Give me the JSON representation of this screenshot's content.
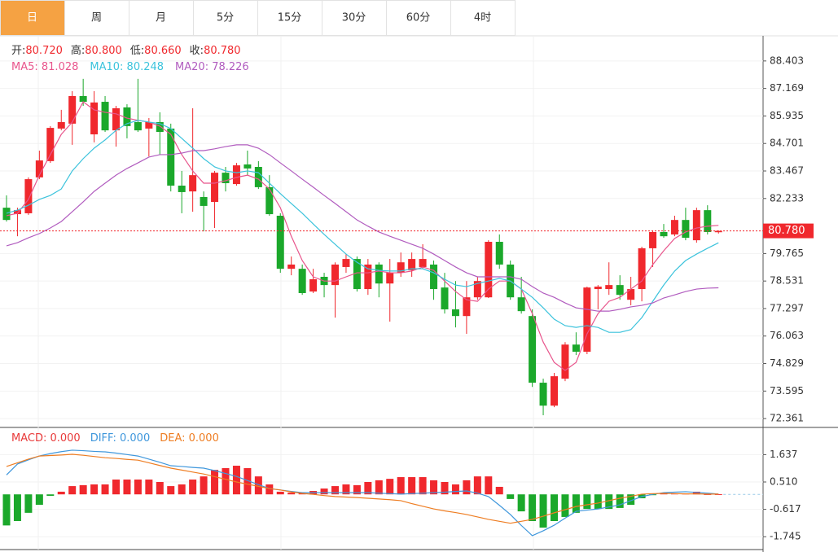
{
  "tabs": [
    "日",
    "周",
    "月",
    "5分",
    "15分",
    "30分",
    "60分",
    "4时"
  ],
  "active_tab": 0,
  "chart_data": [
    {
      "type": "candlestick",
      "info": [
        {
          "label": "开:",
          "value": "80.720"
        },
        {
          "label": "高:",
          "value": "80.800"
        },
        {
          "label": "低:",
          "value": "80.660"
        },
        {
          "label": "收:",
          "value": "80.780"
        }
      ],
      "up_color": "#f0282d",
      "down_color": "#1ba82b",
      "open": [
        81.82,
        81.53,
        81.57,
        83.18,
        83.91,
        85.37,
        85.59,
        86.83,
        85.11,
        86.57,
        85.29,
        86.32,
        85.66,
        85.37,
        85.66,
        85.37,
        82.81,
        82.55,
        82.3,
        82.08,
        83.39,
        82.88,
        83.76,
        83.65,
        82.74,
        81.46,
        79.08,
        79.08,
        78.06,
        78.72,
        78.35,
        79.16,
        79.52,
        78.17,
        79.27,
        78.42,
        78.9,
        79.01,
        79.16,
        79.27,
        78.24,
        77.26,
        76.96,
        77.8,
        77.8,
        80.29,
        79.27,
        77.8,
        76.96,
        73.97,
        72.94,
        74.15,
        75.68,
        75.36,
        78.17,
        78.17,
        78.35,
        77.69,
        78.17,
        80.0,
        80.73,
        80.62,
        81.27,
        80.36,
        81.71,
        80.72
      ],
      "high": [
        82.37,
        81.82,
        83.18,
        84.38,
        85.48,
        86.21,
        87.05,
        87.6,
        87.05,
        86.83,
        86.39,
        86.46,
        87.6,
        85.84,
        86.1,
        85.59,
        83.47,
        86.28,
        82.55,
        83.47,
        83.65,
        83.83,
        84.38,
        83.91,
        83.28,
        81.57,
        79.63,
        79.27,
        79.08,
        78.9,
        79.37,
        79.74,
        79.63,
        79.52,
        79.37,
        79.52,
        79.81,
        79.81,
        80.18,
        79.45,
        78.9,
        78.53,
        78.53,
        78.72,
        80.36,
        80.62,
        79.45,
        78.72,
        77.26,
        74.15,
        74.41,
        75.79,
        76.23,
        78.28,
        78.35,
        79.37,
        78.79,
        78.72,
        80.07,
        80.8,
        81.09,
        81.46,
        81.82,
        81.82,
        81.93,
        80.8
      ],
      "low": [
        81.2,
        80.54,
        81.5,
        83.1,
        83.83,
        85.29,
        84.64,
        86.39,
        84.75,
        85.22,
        84.56,
        84.93,
        85.22,
        84.12,
        84.2,
        82.55,
        81.57,
        81.64,
        80.76,
        80.91,
        82.55,
        82.81,
        83.28,
        82.66,
        81.46,
        78.9,
        78.79,
        77.91,
        77.99,
        77.8,
        76.89,
        78.9,
        78.06,
        77.91,
        77.8,
        76.71,
        78.72,
        78.72,
        79.08,
        77.69,
        77.07,
        76.45,
        76.16,
        77.69,
        77.77,
        79.08,
        77.69,
        77.07,
        73.78,
        72.51,
        72.87,
        74.04,
        75.21,
        75.25,
        77.26,
        77.91,
        77.69,
        77.44,
        77.62,
        79.16,
        80.47,
        80.54,
        80.36,
        80.25,
        80.62,
        80.66
      ],
      "close": [
        81.27,
        81.71,
        83.1,
        83.94,
        85.4,
        85.66,
        86.83,
        86.57,
        86.54,
        85.29,
        86.28,
        85.48,
        85.29,
        85.66,
        85.22,
        82.81,
        82.52,
        83.28,
        81.9,
        83.39,
        82.92,
        83.72,
        83.58,
        82.74,
        81.53,
        79.08,
        79.27,
        77.99,
        78.61,
        78.35,
        79.27,
        79.52,
        78.17,
        79.27,
        78.42,
        78.9,
        79.37,
        79.52,
        79.52,
        78.17,
        77.26,
        76.96,
        77.8,
        78.53,
        80.29,
        79.27,
        77.8,
        77.18,
        73.97,
        72.94,
        74.26,
        75.68,
        75.36,
        78.24,
        78.28,
        78.35,
        77.91,
        78.17,
        80.0,
        80.73,
        80.54,
        81.27,
        80.47,
        81.71,
        80.73,
        80.78
      ],
      "series": [
        {
          "legend": "MA5: 81.028",
          "color": "#e8558c",
          "values": [
            81.46,
            81.57,
            82.19,
            83.28,
            84.2,
            85.11,
            85.66,
            86.57,
            86.21,
            86.1,
            86.03,
            85.84,
            85.74,
            85.66,
            85.48,
            85.11,
            84.2,
            83.47,
            82.92,
            82.92,
            83.03,
            83.18,
            83.28,
            83.1,
            82.66,
            81.82,
            80.54,
            79.45,
            78.72,
            78.53,
            78.53,
            78.72,
            78.9,
            78.9,
            78.98,
            78.9,
            78.9,
            78.98,
            79.16,
            79.01,
            78.53,
            78.06,
            77.69,
            77.62,
            78.17,
            78.53,
            78.53,
            78.17,
            77.07,
            75.79,
            74.88,
            74.52,
            74.88,
            76.16,
            77.07,
            77.62,
            77.8,
            78.17,
            78.53,
            79.27,
            79.89,
            80.44,
            80.73,
            80.91,
            80.99,
            81.028
          ]
        },
        {
          "legend": "MA10: 80.248",
          "color": "#3cc3dc",
          "values": [
            81.57,
            81.71,
            81.93,
            82.19,
            82.37,
            82.66,
            83.47,
            84.02,
            84.49,
            84.86,
            85.29,
            85.59,
            85.74,
            85.66,
            85.59,
            85.37,
            84.93,
            84.49,
            84.02,
            83.65,
            83.47,
            83.39,
            83.47,
            83.39,
            82.92,
            82.45,
            82.01,
            81.57,
            81.09,
            80.62,
            80.18,
            79.74,
            79.37,
            79.08,
            79.01,
            78.98,
            78.98,
            79.08,
            79.08,
            78.9,
            78.61,
            78.35,
            78.28,
            78.42,
            78.53,
            78.65,
            78.53,
            78.17,
            77.8,
            77.33,
            76.82,
            76.53,
            76.45,
            76.53,
            76.45,
            76.23,
            76.23,
            76.35,
            76.89,
            77.62,
            78.35,
            78.98,
            79.45,
            79.74,
            80.0,
            80.248
          ]
        },
        {
          "legend": "MA20: 78.226",
          "color": "#b15cbf",
          "values": [
            80.11,
            80.25,
            80.47,
            80.66,
            80.91,
            81.2,
            81.64,
            82.08,
            82.55,
            82.92,
            83.28,
            83.58,
            83.83,
            84.09,
            84.2,
            84.2,
            84.27,
            84.38,
            84.38,
            84.46,
            84.56,
            84.64,
            84.64,
            84.49,
            84.2,
            83.83,
            83.47,
            83.1,
            82.74,
            82.37,
            82.01,
            81.64,
            81.27,
            80.99,
            80.73,
            80.54,
            80.36,
            80.18,
            80.0,
            79.74,
            79.45,
            79.16,
            78.9,
            78.72,
            78.72,
            78.72,
            78.72,
            78.61,
            78.28,
            77.99,
            77.8,
            77.55,
            77.33,
            77.26,
            77.18,
            77.18,
            77.26,
            77.37,
            77.44,
            77.55,
            77.77,
            77.91,
            78.06,
            78.17,
            78.21,
            78.226
          ]
        }
      ],
      "last_price": {
        "value": 80.78,
        "label": "80.780"
      },
      "ylim": [
        72.0,
        89.53
      ],
      "yticks": [
        88.403,
        87.169,
        85.935,
        84.701,
        83.467,
        82.233,
        79.765,
        78.531,
        77.297,
        76.063,
        74.829,
        73.595,
        72.361
      ],
      "grid": true
    },
    {
      "type": "macd",
      "legend": [
        {
          "text": "MACD: 0.000",
          "color": "#e83a3a"
        },
        {
          "text": "DIFF: 0.000",
          "color": "#3f97dc"
        },
        {
          "text": "DEA: 0.000",
          "color": "#ee7d22"
        }
      ],
      "up_color": "#f0282d",
      "down_color": "#1ba82b",
      "values": [
        -1.28,
        -1.1,
        -0.76,
        -0.43,
        -0.06,
        0.11,
        0.34,
        0.38,
        0.41,
        0.41,
        0.61,
        0.61,
        0.61,
        0.61,
        0.51,
        0.34,
        0.41,
        0.61,
        0.74,
        1.01,
        1.08,
        1.18,
        1.08,
        0.74,
        0.41,
        0.11,
        0.07,
        0.04,
        0.14,
        0.24,
        0.34,
        0.41,
        0.38,
        0.51,
        0.58,
        0.64,
        0.71,
        0.71,
        0.71,
        0.58,
        0.51,
        0.41,
        0.58,
        0.74,
        0.74,
        0.31,
        -0.19,
        -0.7,
        -1.1,
        -1.37,
        -1.1,
        -0.93,
        -0.76,
        -0.6,
        -0.6,
        -0.6,
        -0.56,
        -0.43,
        -0.16,
        -0.03,
        0.04,
        0.04,
        0.04,
        0.11,
        0.01,
        0.01
      ],
      "series": [
        {
          "color": "#3f97dc",
          "values": [
            0.8,
            1.25,
            1.42,
            1.58,
            1.68,
            1.76,
            1.82,
            1.8,
            1.77,
            1.75,
            1.7,
            1.64,
            1.58,
            1.45,
            1.32,
            1.18,
            1.15,
            1.11,
            1.08,
            0.98,
            0.86,
            0.74,
            0.57,
            0.4,
            0.24,
            0.18,
            0.12,
            0.07,
            0.07,
            0.07,
            0.07,
            0.07,
            0.07,
            0.07,
            0.05,
            0.03,
            0.01,
            0.03,
            0.05,
            0.07,
            0.09,
            0.12,
            0.14,
            0.05,
            -0.09,
            -0.45,
            -0.83,
            -1.28,
            -1.7,
            -1.5,
            -1.27,
            -0.98,
            -0.7,
            -0.65,
            -0.6,
            -0.52,
            -0.43,
            -0.26,
            -0.09,
            0.0,
            0.07,
            0.09,
            0.11,
            0.08,
            0.05,
            0.01
          ]
        },
        {
          "color": "#ee7d22",
          "values": [
            1.15,
            1.3,
            1.45,
            1.58,
            1.6,
            1.62,
            1.65,
            1.61,
            1.56,
            1.51,
            1.48,
            1.44,
            1.41,
            1.3,
            1.19,
            1.08,
            1.0,
            0.92,
            0.84,
            0.73,
            0.62,
            0.51,
            0.42,
            0.33,
            0.24,
            0.18,
            0.1,
            0.04,
            0.0,
            -0.05,
            -0.09,
            -0.11,
            -0.13,
            -0.16,
            -0.19,
            -0.22,
            -0.26,
            -0.38,
            -0.49,
            -0.6,
            -0.68,
            -0.75,
            -0.83,
            -0.93,
            -1.03,
            -1.11,
            -1.19,
            -1.11,
            -1.03,
            -0.9,
            -0.76,
            -0.63,
            -0.5,
            -0.43,
            -0.36,
            -0.26,
            -0.16,
            -0.08,
            0.01,
            0.03,
            0.04,
            0.03,
            0.02,
            0.02,
            0.01,
            0.01
          ]
        }
      ],
      "ylim": [
        -2.24,
        2.69
      ],
      "yticks": [
        1.637,
        {
          "value": 0.51,
          "label": "0.510"
        },
        -0.617,
        -1.745
      ],
      "grid": true
    }
  ]
}
